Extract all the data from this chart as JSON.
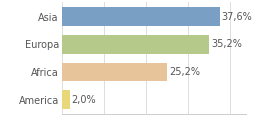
{
  "categories": [
    "America",
    "Africa",
    "Europa",
    "Asia"
  ],
  "values": [
    2.0,
    25.2,
    35.2,
    37.6
  ],
  "bar_colors": [
    "#e8d87a",
    "#e8c49a",
    "#b5c98a",
    "#7a9fc4"
  ],
  "labels": [
    "2,0%",
    "25,2%",
    "35,2%",
    "37,6%"
  ],
  "xlim": [
    0,
    44
  ],
  "background_color": "#ffffff",
  "label_fontsize": 7,
  "tick_fontsize": 7,
  "bar_height": 0.68
}
